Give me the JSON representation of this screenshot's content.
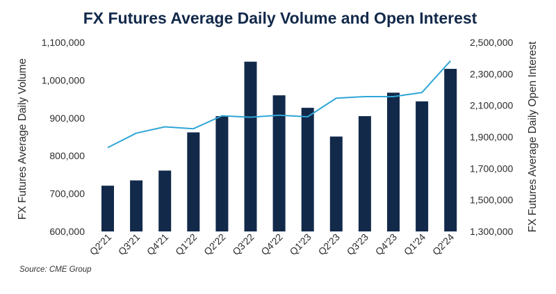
{
  "chart_data": {
    "type": "bar+line",
    "title": "FX Futures Average Daily Volume and Open Interest",
    "categories": [
      "Q2'21",
      "Q3'21",
      "Q4'21",
      "Q1'22",
      "Q2'22",
      "Q3'22",
      "Q4'22",
      "Q1'23",
      "Q2'23",
      "Q3'23",
      "Q4'23",
      "Q1'24",
      "Q2'24"
    ],
    "series": [
      {
        "name": "FX Futures Average Daily Volume",
        "kind": "bar",
        "axis": "left",
        "values": [
          721000,
          735000,
          761000,
          862000,
          905000,
          1049000,
          960000,
          927000,
          851000,
          905000,
          967000,
          944000,
          1030000
        ]
      },
      {
        "name": "FX Futures Average Daily Open Interest",
        "kind": "line",
        "axis": "right",
        "values": [
          1832000,
          1924000,
          1964000,
          1952000,
          2034000,
          2025000,
          2038000,
          2028000,
          2146000,
          2156000,
          2156000,
          2182000,
          2383000
        ]
      }
    ],
    "ylabel": "FX Futures Average Daily Volume",
    "ylabel_right": "FX Futures Average Daily Open Interest",
    "ylim": [
      600000,
      1100000
    ],
    "ylim_right": [
      1300000,
      2500000
    ],
    "yticks": [
      "600,000",
      "700,000",
      "800,000",
      "900,000",
      "1,000,000",
      "1,100,000"
    ],
    "yticks_right": [
      "1,300,000",
      "1,500,000",
      "1,700,000",
      "1,900,000",
      "2,100,000",
      "2,300,000",
      "2,500,000"
    ],
    "grid": false,
    "source": "Source: CME Group",
    "colors": {
      "bar": "#12294a",
      "line": "#2fa6d6",
      "title": "#12294a",
      "text": "#2b2b2b"
    }
  }
}
